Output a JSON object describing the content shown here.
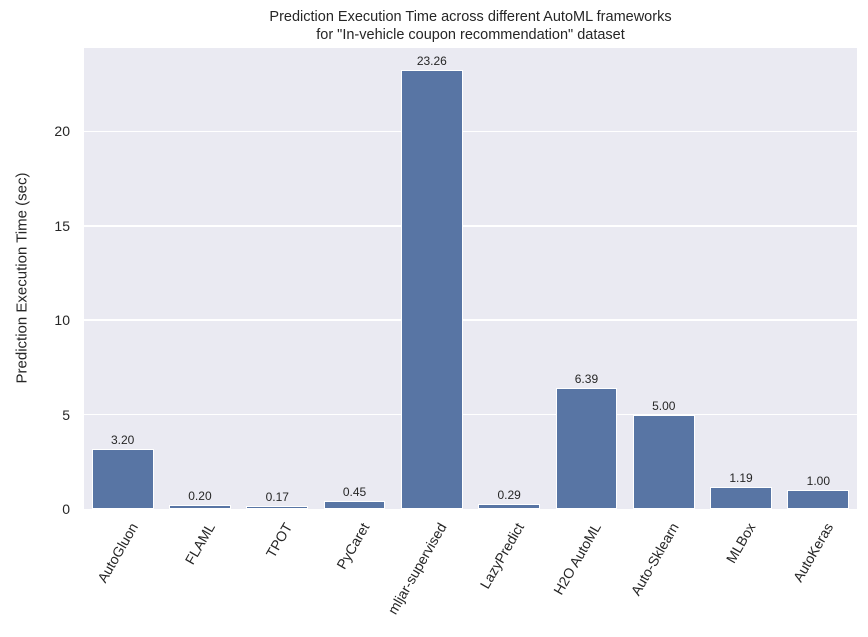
{
  "chart_data": {
    "type": "bar",
    "title": "Prediction Execution Time across different AutoML frameworks\nfor \"In-vehicle coupon recommendation\" dataset",
    "title_lines": [
      "Prediction Execution Time across different AutoML frameworks",
      "for \"In-vehicle coupon recommendation\" dataset"
    ],
    "xlabel": "",
    "ylabel": "Prediction Execution Time (sec)",
    "categories": [
      "AutoGluon",
      "FLAML",
      "TPOT",
      "PyCaret",
      "mljar-supervised",
      "LazyPredict",
      "H2O AutoML",
      "Auto-Sklearn",
      "MLBox",
      "AutoKeras"
    ],
    "values": [
      3.2,
      0.2,
      0.17,
      0.45,
      23.26,
      0.29,
      6.39,
      5.0,
      1.19,
      1.0
    ],
    "value_labels": [
      "3.20",
      "0.20",
      "0.17",
      "0.45",
      "23.26",
      "0.29",
      "6.39",
      "5.00",
      "1.19",
      "1.00"
    ],
    "yticks": [
      0,
      5,
      10,
      15,
      20
    ],
    "ylim": [
      0,
      24.42
    ],
    "grid": true,
    "legend": null,
    "bar_color": "#5875a4",
    "background_color": "#eaeaf2",
    "xtick_rotation": -60
  }
}
